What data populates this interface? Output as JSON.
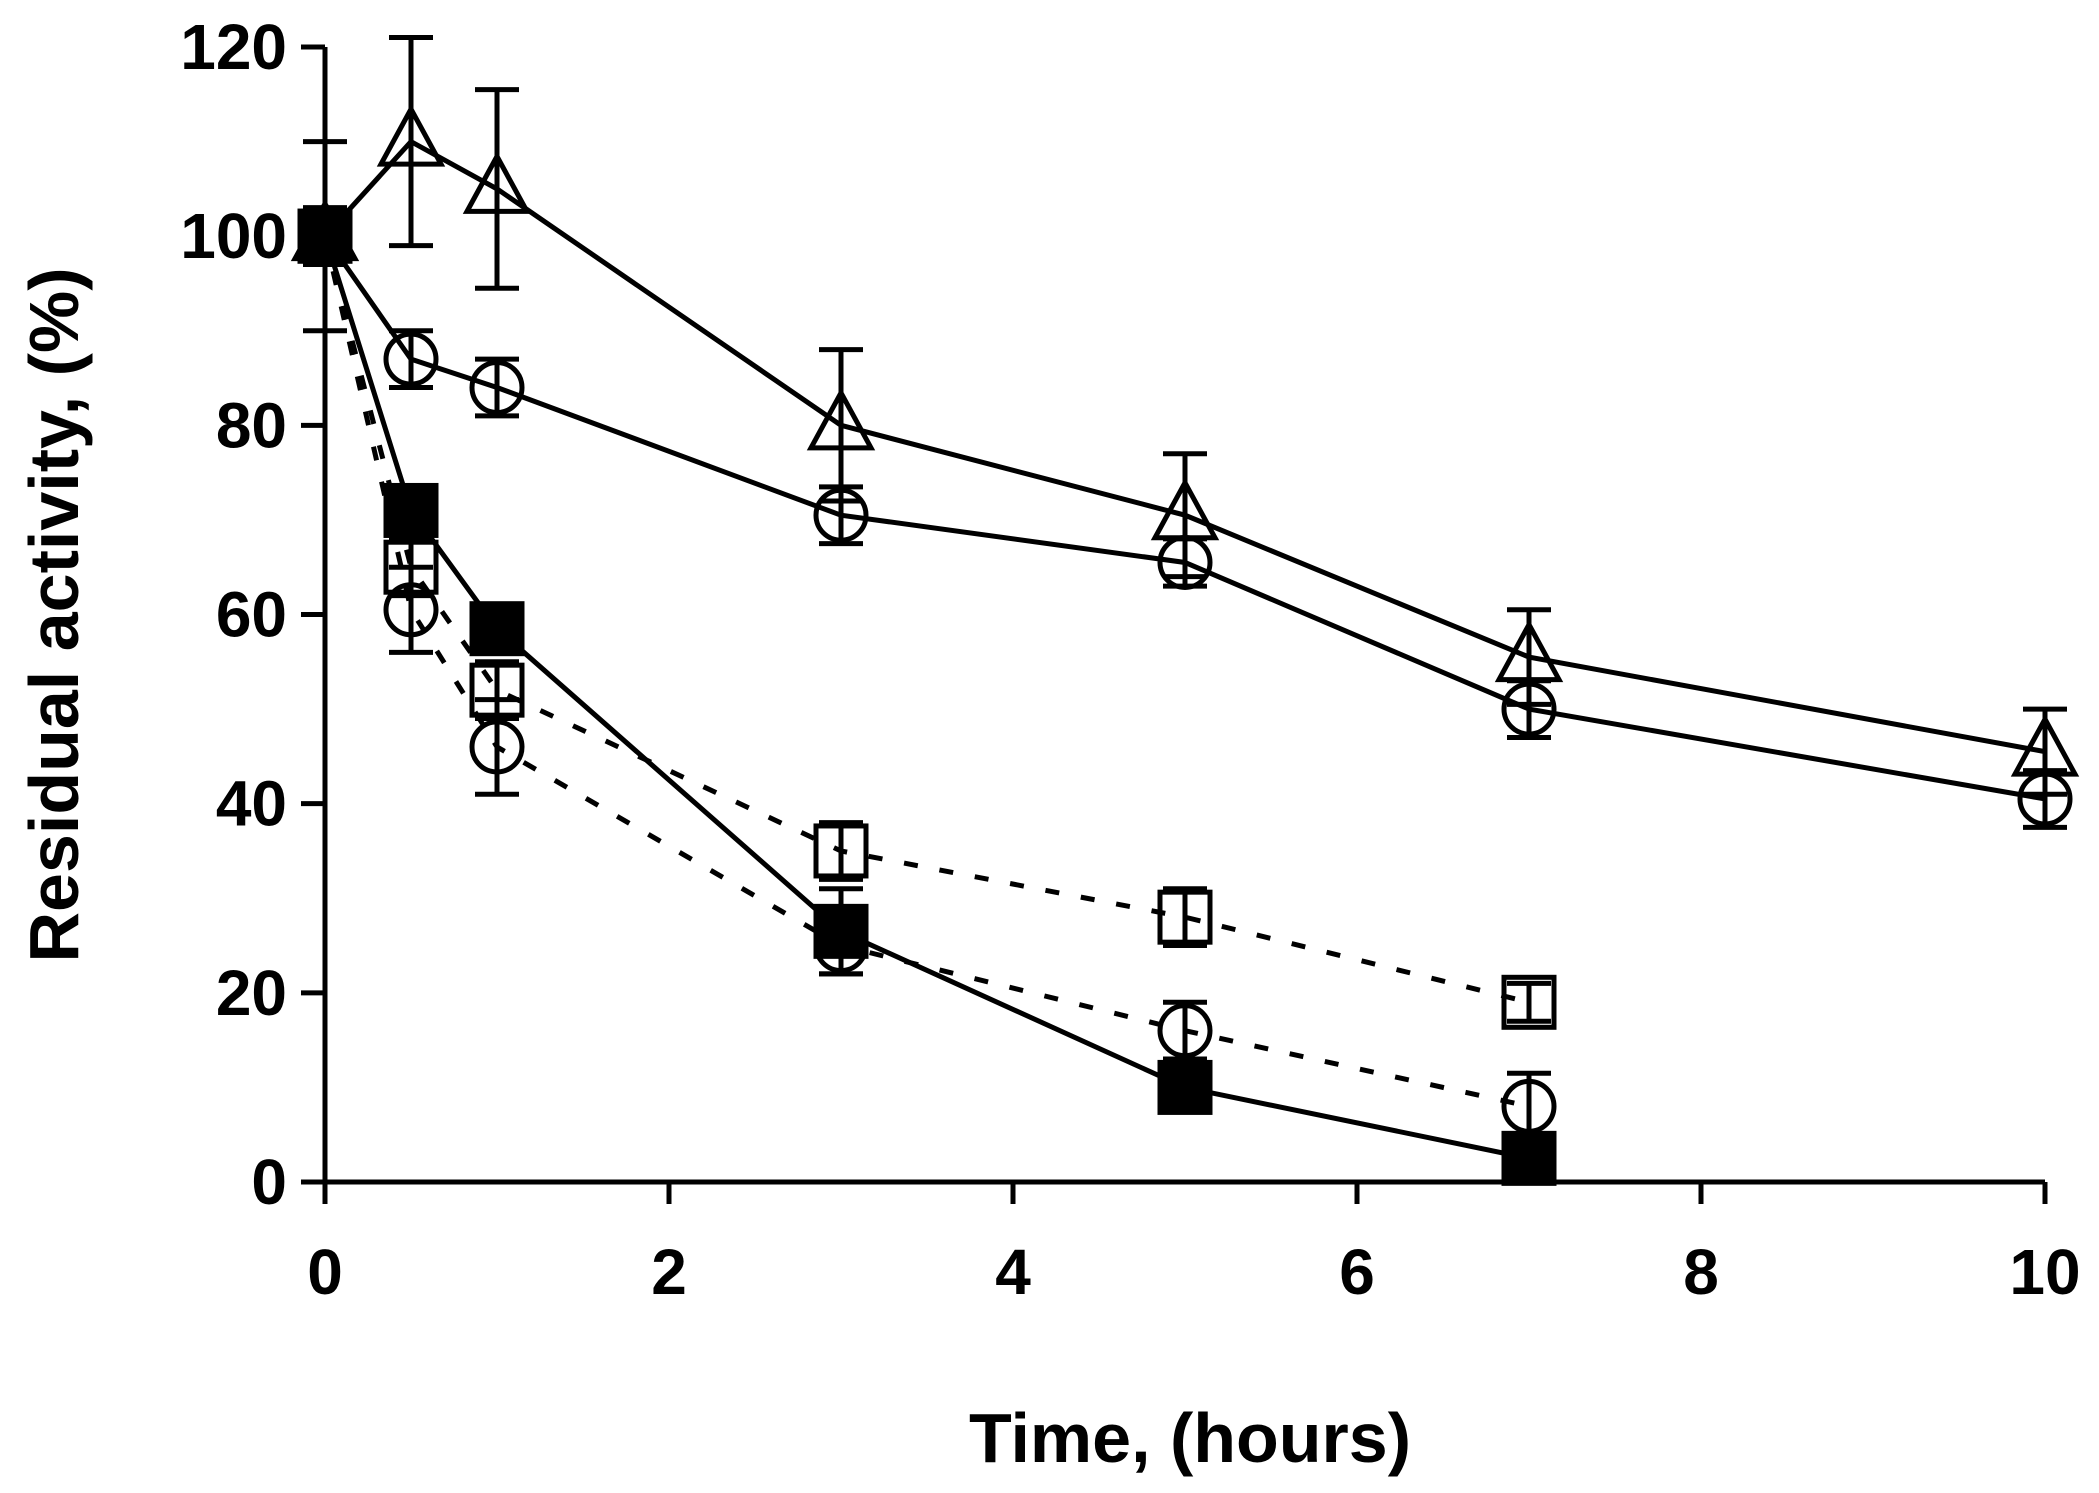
{
  "chart_data": {
    "type": "line",
    "title": "",
    "xlabel": "Time, (hours)",
    "ylabel": "Residual activity, (%)",
    "xlim": [
      0,
      10
    ],
    "ylim": [
      0,
      120
    ],
    "xticks": [
      "0",
      "2",
      "4",
      "6",
      "8",
      "10"
    ],
    "yticks": [
      "0",
      "20",
      "40",
      "60",
      "80",
      "100",
      "120"
    ],
    "grid": false,
    "legend": "none",
    "series": [
      {
        "name": "open-triangle-solid",
        "marker": "triangle-open",
        "line": "solid",
        "x": [
          0,
          0.5,
          1,
          3,
          5,
          7,
          10
        ],
        "y": [
          100,
          110,
          105,
          80,
          70.5,
          55.5,
          45.5
        ],
        "err": [
          10,
          11,
          10.5,
          8,
          6.5,
          5,
          4.5
        ]
      },
      {
        "name": "open-circle-solid",
        "marker": "circle-open",
        "line": "solid",
        "x": [
          0,
          0.5,
          1,
          3,
          5,
          7,
          10
        ],
        "y": [
          100,
          87,
          84,
          70.5,
          65.5,
          50,
          40.5
        ],
        "err": [
          2,
          3,
          3,
          3,
          2.5,
          3,
          3
        ]
      },
      {
        "name": "filled-square-solid",
        "marker": "square-filled",
        "line": "solid",
        "x": [
          0,
          0.5,
          1,
          3,
          5,
          7
        ],
        "y": [
          100,
          71,
          58.5,
          26.5,
          10,
          2.5
        ],
        "err": [
          2,
          2,
          2,
          4.5,
          2,
          1
        ]
      },
      {
        "name": "open-square-dashed",
        "marker": "square-open",
        "line": "dashed",
        "x": [
          0,
          0.5,
          1,
          3,
          5,
          7
        ],
        "y": [
          100,
          65,
          52,
          35,
          28,
          19
        ],
        "err": [
          3,
          3,
          3,
          3,
          3,
          2
        ]
      },
      {
        "name": "open-circle-dashed",
        "marker": "circle-open",
        "line": "dashed",
        "x": [
          0,
          0.5,
          1,
          3,
          5,
          7
        ],
        "y": [
          100,
          60.5,
          46,
          25,
          16,
          8
        ],
        "err": [
          3,
          4.5,
          5,
          3,
          3,
          3.5
        ]
      }
    ]
  }
}
